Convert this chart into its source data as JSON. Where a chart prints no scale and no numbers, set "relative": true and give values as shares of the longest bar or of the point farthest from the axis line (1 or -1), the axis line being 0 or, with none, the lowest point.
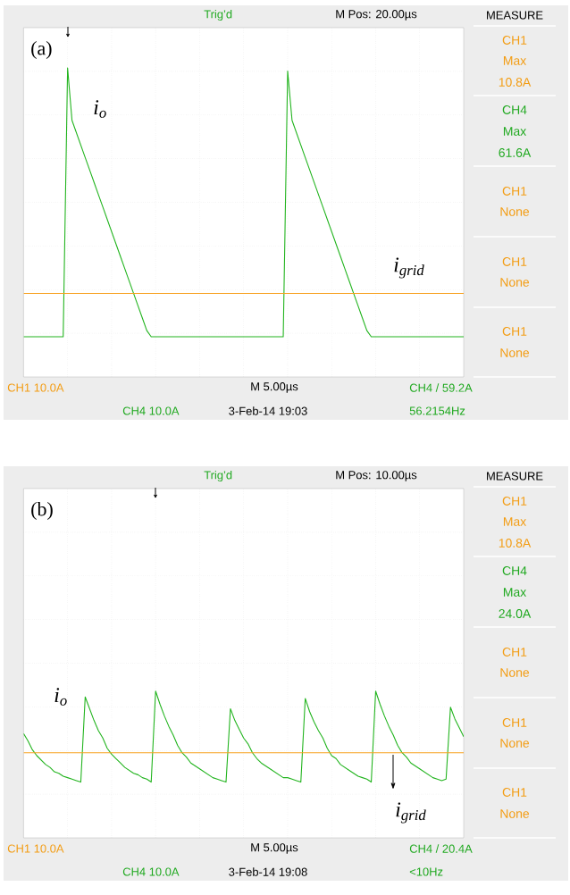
{
  "chart_data": [
    {
      "type": "line",
      "relative": true,
      "grid": true,
      "categories": [
        null,
        null,
        null,
        null,
        null,
        null,
        null,
        null,
        null,
        null,
        null,
        null,
        null,
        null,
        null,
        null,
        null,
        null,
        null,
        null,
        null,
        null,
        null,
        null,
        null,
        null,
        null,
        null,
        null,
        null,
        null,
        null,
        null,
        null,
        null,
        null,
        null,
        null,
        null,
        null,
        null,
        null,
        null,
        null,
        null,
        null,
        null,
        null,
        null,
        null,
        null,
        null,
        null,
        null,
        null,
        null,
        null,
        null,
        null,
        null,
        null,
        null,
        null,
        null,
        null,
        null,
        null,
        null,
        null,
        null,
        null,
        null,
        null,
        null,
        null,
        null,
        null,
        null,
        null,
        null,
        null,
        null,
        null,
        null,
        null,
        null,
        null,
        null,
        null,
        null,
        null,
        null,
        null,
        null,
        null,
        null,
        null,
        null,
        null,
        null,
        null
      ],
      "series": [
        {
          "name": "i$_{o}$",
          "color": "#22b41e",
          "values": [
            0.13,
            0.13,
            0.13,
            0.13,
            0.13,
            0.13,
            0.13,
            0.13,
            0.13,
            0.13,
            1,
            0.83,
            0.79,
            0.75,
            0.71,
            0.67,
            0.63,
            0.59,
            0.55,
            0.51,
            0.47,
            0.43,
            0.39,
            0.35,
            0.31,
            0.27,
            0.23,
            0.19,
            0.15,
            0.13,
            0.13,
            0.13,
            0.13,
            0.13,
            0.13,
            0.13,
            0.13,
            0.13,
            0.13,
            0.13,
            0.13,
            0.13,
            0.13,
            0.13,
            0.13,
            0.13,
            0.13,
            0.13,
            0.13,
            0.13,
            0.13,
            0.13,
            0.13,
            0.13,
            0.13,
            0.13,
            0.13,
            0.13,
            0.13,
            0.13,
            0.99,
            0.83,
            0.79,
            0.75,
            0.71,
            0.67,
            0.63,
            0.59,
            0.55,
            0.51,
            0.47,
            0.43,
            0.39,
            0.35,
            0.31,
            0.27,
            0.23,
            0.19,
            0.15,
            0.13,
            0.13,
            0.13,
            0.13,
            0.13,
            0.13,
            0.13,
            0.13,
            0.13,
            0.13,
            0.13,
            0.13,
            0.13,
            0.13,
            0.13,
            0.13,
            0.13,
            0.13,
            0.13,
            0.13,
            0.13,
            0.13
          ]
        },
        {
          "name": "i$_{grid}$",
          "color": "#f7a01c",
          "values": [
            0.27,
            0.27,
            0.27,
            0.27,
            0.27,
            0.27,
            0.27,
            0.27,
            0.27,
            0.27,
            0.27,
            0.27,
            0.27,
            0.27,
            0.27,
            0.27,
            0.27,
            0.27,
            0.27,
            0.27,
            0.27,
            0.27,
            0.27,
            0.27,
            0.27,
            0.27,
            0.27,
            0.27,
            0.27,
            0.27,
            0.27,
            0.27,
            0.27,
            0.27,
            0.27,
            0.27,
            0.27,
            0.27,
            0.27,
            0.27,
            0.27,
            0.27,
            0.27,
            0.27,
            0.27,
            0.27,
            0.27,
            0.27,
            0.27,
            0.27,
            0.27,
            0.27,
            0.27,
            0.27,
            0.27,
            0.27,
            0.27,
            0.27,
            0.27,
            0.27,
            0.27,
            0.27,
            0.27,
            0.27,
            0.27,
            0.27,
            0.27,
            0.27,
            0.27,
            0.27,
            0.27,
            0.27,
            0.27,
            0.27,
            0.27,
            0.27,
            0.27,
            0.27,
            0.27,
            0.27,
            0.27,
            0.27,
            0.27,
            0.27,
            0.27,
            0.27,
            0.27,
            0.27,
            0.27,
            0.27,
            0.27,
            0.27,
            0.27,
            0.27,
            0.27,
            0.27,
            0.27,
            0.27,
            0.27,
            0.27,
            0.27
          ]
        }
      ],
      "annotations": [
        "(a)",
        "Trig’d",
        "M Pos: 20.00µs",
        "MEASURE",
        "CH1",
        "Max",
        "10.8A",
        "CH4",
        "Max",
        "61.6A",
        "CH1",
        "None",
        "CH1",
        "None",
        "CH1",
        "None",
        "CH1  10.0A",
        "M 5.00µs",
        "CH4 / 59.2A",
        "CH4  10.0A",
        "3-Feb-14 19:03",
        "56.2154Hz"
      ]
    },
    {
      "type": "line",
      "relative": true,
      "grid": true,
      "categories": [
        null,
        null,
        null,
        null,
        null,
        null,
        null,
        null,
        null,
        null,
        null,
        null,
        null,
        null,
        null,
        null,
        null,
        null,
        null,
        null,
        null,
        null,
        null,
        null,
        null,
        null,
        null,
        null,
        null,
        null,
        null,
        null,
        null,
        null,
        null,
        null,
        null,
        null,
        null,
        null,
        null,
        null,
        null,
        null,
        null,
        null,
        null,
        null,
        null,
        null,
        null,
        null,
        null,
        null,
        null,
        null,
        null,
        null,
        null,
        null,
        null,
        null,
        null,
        null,
        null,
        null,
        null,
        null,
        null,
        null,
        null,
        null,
        null,
        null,
        null,
        null,
        null,
        null,
        null,
        null,
        null,
        null,
        null,
        null,
        null,
        null,
        null,
        null,
        null,
        null,
        null,
        null,
        null,
        null,
        null,
        null,
        null,
        null,
        null,
        null,
        null
      ],
      "series": [
        {
          "name": "i$_{o}$",
          "color": "#22b41e",
          "values": [
            0.71,
            0.66,
            0.6,
            0.56,
            0.53,
            0.5,
            0.48,
            0.45,
            0.44,
            0.42,
            0.41,
            0.4,
            0.39,
            0.38,
            0.96,
            0.88,
            0.8,
            0.73,
            0.68,
            0.61,
            0.57,
            0.54,
            0.51,
            0.48,
            0.46,
            0.44,
            0.43,
            0.41,
            0.4,
            0.38,
            1,
            0.91,
            0.83,
            0.76,
            0.7,
            0.63,
            0.58,
            0.55,
            0.51,
            0.49,
            0.47,
            0.45,
            0.43,
            0.41,
            0.4,
            0.39,
            0.38,
            0.88,
            0.8,
            0.74,
            0.68,
            0.64,
            0.58,
            0.54,
            0.51,
            0.49,
            0.47,
            0.45,
            0.43,
            0.41,
            0.41,
            0.4,
            0.39,
            0.38,
            0.95,
            0.86,
            0.79,
            0.73,
            0.68,
            0.61,
            0.56,
            0.54,
            0.5,
            0.48,
            0.46,
            0.44,
            0.42,
            0.41,
            0.4,
            0.38,
            1,
            0.91,
            0.83,
            0.76,
            0.7,
            0.63,
            0.58,
            0.55,
            0.51,
            0.49,
            0.47,
            0.45,
            0.43,
            0.41,
            0.4,
            0.39,
            0.4,
            0.89,
            0.81,
            0.75,
            0.69
          ]
        },
        {
          "name": "i$_{grid}$",
          "color": "#f7a01c",
          "values": [
            0.58,
            0.58,
            0.58,
            0.58,
            0.58,
            0.58,
            0.58,
            0.58,
            0.58,
            0.58,
            0.58,
            0.58,
            0.58,
            0.58,
            0.58,
            0.58,
            0.58,
            0.58,
            0.58,
            0.58,
            0.58,
            0.58,
            0.58,
            0.58,
            0.58,
            0.58,
            0.58,
            0.58,
            0.58,
            0.58,
            0.58,
            0.58,
            0.58,
            0.58,
            0.58,
            0.58,
            0.58,
            0.58,
            0.58,
            0.58,
            0.58,
            0.58,
            0.58,
            0.58,
            0.58,
            0.58,
            0.58,
            0.58,
            0.58,
            0.58,
            0.58,
            0.58,
            0.58,
            0.58,
            0.58,
            0.58,
            0.58,
            0.58,
            0.58,
            0.58,
            0.58,
            0.58,
            0.58,
            0.58,
            0.58,
            0.58,
            0.58,
            0.58,
            0.58,
            0.58,
            0.58,
            0.58,
            0.58,
            0.58,
            0.58,
            0.58,
            0.58,
            0.58,
            0.58,
            0.58,
            0.58,
            0.58,
            0.58,
            0.58,
            0.58,
            0.58,
            0.58,
            0.58,
            0.58,
            0.58,
            0.58,
            0.58,
            0.58,
            0.58,
            0.58,
            0.58,
            0.58,
            0.58,
            0.58,
            0.58,
            0.58
          ]
        }
      ],
      "annotations": [
        "(b)",
        "Trig’d",
        "M Pos: 10.00µs",
        "MEASURE",
        "CH1",
        "Max",
        "10.8A",
        "CH4",
        "Max",
        "24.0A",
        "CH1",
        "None",
        "CH1",
        "None",
        "CH1",
        "None",
        "CH1  10.0A",
        "M 5.00µs",
        "CH4 / 20.4A",
        "CH4  10.0A",
        "3-Feb-14 19:08",
        "<10Hz"
      ]
    }
  ]
}
